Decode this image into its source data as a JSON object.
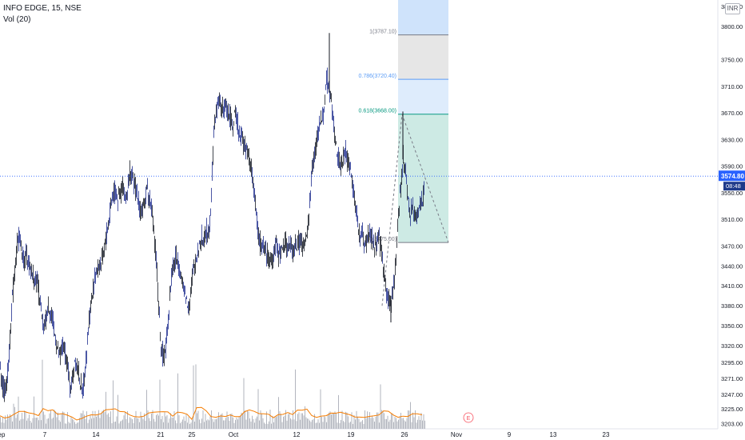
{
  "legend": {
    "symbol_line": "INFO EDGE, 15, NSE",
    "volume_line": "Vol (20)"
  },
  "currency_badge": "INR",
  "price_tag": {
    "price": "3574.80",
    "countdown": "08:48"
  },
  "chart_data": {
    "type": "candlestick",
    "symbol": "INFO EDGE",
    "interval": "15",
    "exchange": "NSE",
    "y_axis": {
      "range": [
        3195,
        3830
      ],
      "ticks": [
        "3830.00",
        "3800.00",
        "3750.00",
        "3710.00",
        "3670.00",
        "3630.00",
        "3590.00",
        "3550.00",
        "3510.00",
        "3470.00",
        "3440.00",
        "3410.00",
        "3380.00",
        "3350.00",
        "3320.00",
        "3295.00",
        "3271.00",
        "3247.00",
        "3225.00",
        "3203.00"
      ]
    },
    "x_axis": {
      "ticks": [
        "ep",
        "7",
        "14",
        "21",
        "25",
        "Oct",
        "12",
        "19",
        "26",
        "Nov",
        "9",
        "13",
        "23"
      ]
    },
    "close_series": [
      [
        0,
        3290
      ],
      [
        3,
        3260
      ],
      [
        6,
        3250
      ],
      [
        9,
        3280
      ],
      [
        12,
        3330
      ],
      [
        15,
        3390
      ],
      [
        18,
        3430
      ],
      [
        21,
        3470
      ],
      [
        24,
        3490
      ],
      [
        27,
        3460
      ],
      [
        30,
        3440
      ],
      [
        33,
        3460
      ],
      [
        36,
        3440
      ],
      [
        39,
        3430
      ],
      [
        42,
        3420
      ],
      [
        45,
        3420
      ],
      [
        48,
        3400
      ],
      [
        51,
        3370
      ],
      [
        54,
        3340
      ],
      [
        57,
        3360
      ],
      [
        60,
        3380
      ],
      [
        63,
        3370
      ],
      [
        66,
        3350
      ],
      [
        69,
        3330
      ],
      [
        72,
        3310
      ],
      [
        75,
        3300
      ],
      [
        78,
        3320
      ],
      [
        81,
        3310
      ],
      [
        84,
        3290
      ],
      [
        87,
        3260
      ],
      [
        90,
        3270
      ],
      [
        93,
        3300
      ],
      [
        96,
        3290
      ],
      [
        99,
        3270
      ],
      [
        102,
        3250
      ],
      [
        105,
        3270
      ],
      [
        108,
        3310
      ],
      [
        111,
        3360
      ],
      [
        114,
        3390
      ],
      [
        117,
        3410
      ],
      [
        120,
        3430
      ],
      [
        123,
        3440
      ],
      [
        126,
        3440
      ],
      [
        129,
        3460
      ],
      [
        132,
        3480
      ],
      [
        135,
        3500
      ],
      [
        138,
        3530
      ],
      [
        141,
        3550
      ],
      [
        144,
        3550
      ],
      [
        147,
        3540
      ],
      [
        150,
        3550
      ],
      [
        153,
        3560
      ],
      [
        156,
        3540
      ],
      [
        159,
        3550
      ],
      [
        162,
        3580
      ],
      [
        165,
        3570
      ],
      [
        168,
        3560
      ],
      [
        171,
        3550
      ],
      [
        174,
        3530
      ],
      [
        177,
        3520
      ],
      [
        180,
        3530
      ],
      [
        183,
        3560
      ],
      [
        186,
        3540
      ],
      [
        189,
        3530
      ],
      [
        192,
        3490
      ],
      [
        195,
        3450
      ],
      [
        198,
        3380
      ],
      [
        201,
        3320
      ],
      [
        204,
        3300
      ],
      [
        207,
        3320
      ],
      [
        210,
        3360
      ],
      [
        213,
        3410
      ],
      [
        216,
        3440
      ],
      [
        219,
        3450
      ],
      [
        222,
        3450
      ],
      [
        225,
        3430
      ],
      [
        228,
        3410
      ],
      [
        231,
        3400
      ],
      [
        234,
        3380
      ],
      [
        237,
        3390
      ],
      [
        240,
        3420
      ],
      [
        243,
        3440
      ],
      [
        246,
        3460
      ],
      [
        249,
        3470
      ],
      [
        252,
        3480
      ],
      [
        255,
        3480
      ],
      [
        258,
        3490
      ],
      [
        261,
        3490
      ],
      [
        264,
        3550
      ],
      [
        267,
        3640
      ],
      [
        270,
        3670
      ],
      [
        273,
        3690
      ],
      [
        276,
        3680
      ],
      [
        279,
        3670
      ],
      [
        282,
        3680
      ],
      [
        285,
        3670
      ],
      [
        288,
        3660
      ],
      [
        291,
        3650
      ],
      [
        294,
        3670
      ],
      [
        297,
        3650
      ],
      [
        300,
        3640
      ],
      [
        303,
        3630
      ],
      [
        306,
        3620
      ],
      [
        309,
        3610
      ],
      [
        312,
        3600
      ],
      [
        315,
        3580
      ],
      [
        318,
        3550
      ],
      [
        321,
        3500
      ],
      [
        324,
        3480
      ],
      [
        327,
        3470
      ],
      [
        330,
        3470
      ],
      [
        333,
        3460
      ],
      [
        336,
        3450
      ],
      [
        339,
        3450
      ],
      [
        342,
        3460
      ],
      [
        345,
        3470
      ],
      [
        348,
        3460
      ],
      [
        351,
        3460
      ],
      [
        354,
        3470
      ],
      [
        357,
        3470
      ],
      [
        360,
        3470
      ],
      [
        363,
        3470
      ],
      [
        366,
        3460
      ],
      [
        369,
        3470
      ],
      [
        372,
        3470
      ],
      [
        375,
        3480
      ],
      [
        378,
        3470
      ],
      [
        381,
        3470
      ],
      [
        384,
        3490
      ],
      [
        387,
        3530
      ],
      [
        390,
        3590
      ],
      [
        393,
        3610
      ],
      [
        396,
        3630
      ],
      [
        399,
        3650
      ],
      [
        402,
        3660
      ],
      [
        405,
        3680
      ],
      [
        408,
        3720
      ],
      [
        411,
        3710
      ],
      [
        414,
        3690
      ],
      [
        417,
        3650
      ],
      [
        420,
        3620
      ],
      [
        423,
        3600
      ],
      [
        426,
        3590
      ],
      [
        429,
        3600
      ],
      [
        432,
        3610
      ],
      [
        435,
        3600
      ],
      [
        438,
        3590
      ],
      [
        441,
        3560
      ],
      [
        444,
        3530
      ],
      [
        447,
        3510
      ],
      [
        450,
        3480
      ],
      [
        453,
        3490
      ],
      [
        456,
        3470
      ],
      [
        459,
        3480
      ],
      [
        462,
        3490
      ],
      [
        465,
        3480
      ],
      [
        468,
        3470
      ],
      [
        471,
        3470
      ],
      [
        474,
        3480
      ],
      [
        477,
        3460
      ],
      [
        480,
        3430
      ],
      [
        483,
        3400
      ],
      [
        486,
        3390
      ],
      [
        489,
        3380
      ],
      [
        492,
        3410
      ],
      [
        495,
        3450
      ],
      [
        498,
        3520
      ],
      [
        501,
        3560
      ],
      [
        504,
        3600
      ],
      [
        507,
        3580
      ],
      [
        510,
        3540
      ],
      [
        513,
        3520
      ],
      [
        516,
        3530
      ],
      [
        519,
        3520
      ],
      [
        522,
        3510
      ],
      [
        525,
        3530
      ],
      [
        528,
        3540
      ],
      [
        531,
        3560
      ]
    ],
    "candle_date_span": [
      "Sep",
      "26"
    ],
    "last_price": 3574.8,
    "fib_retracement": [
      {
        "level": "1(3787.10)",
        "price": 3787.1,
        "color": "#787b86"
      },
      {
        "level": "0.786(3720.40)",
        "price": 3720.4,
        "color": "#5b9cf6"
      },
      {
        "level": "0.618(3668.00)",
        "price": 3668.0,
        "color": "#089981"
      },
      {
        "level": "0(3475.00)",
        "price": 3475.0,
        "color": "#787b86"
      }
    ],
    "volume_series_note": "Vol (20) histogram with orange moving average",
    "grid": false,
    "colors": {
      "candle_up": "#131722",
      "candle_down": "#1e2d8f",
      "volume": "#b2b5be",
      "volume_ma": "#f57c00",
      "last_price_line": "#2962ff",
      "price_tag_bg": "#2962ff"
    }
  }
}
